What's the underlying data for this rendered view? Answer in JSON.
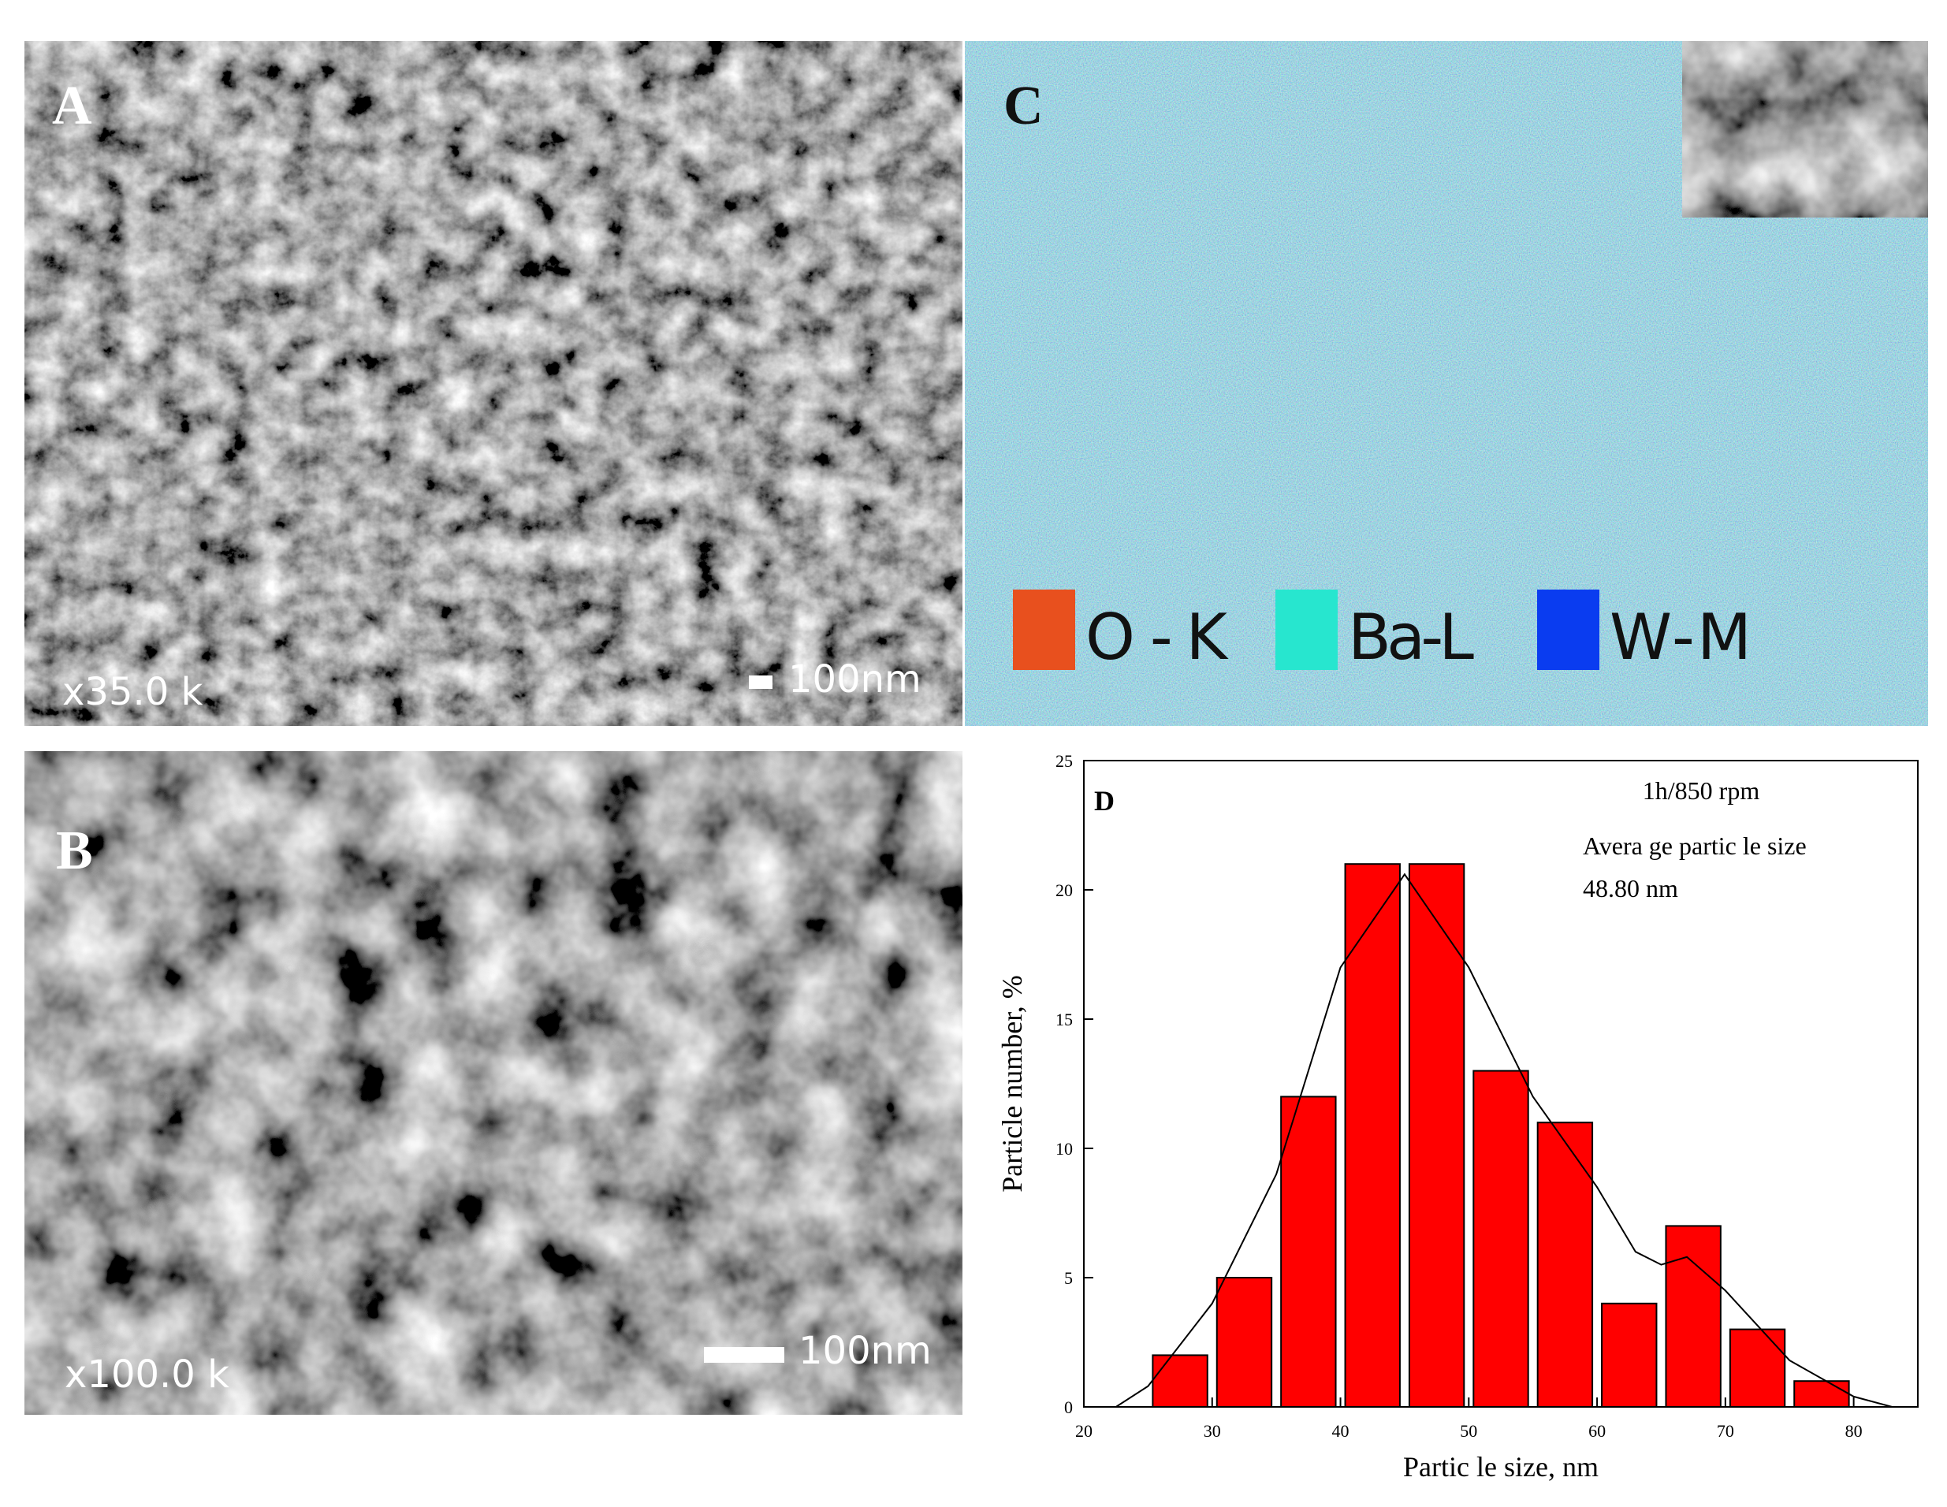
{
  "panels": {
    "a": {
      "label": "A",
      "magnification": "x35.0 k",
      "scale": "100nm"
    },
    "b": {
      "label": "B",
      "magnification": "x100.0 k",
      "scale": "100nm"
    },
    "c": {
      "label": "C",
      "legend": [
        {
          "name": "O-K",
          "color": "#e8501e"
        },
        {
          "name": "Ba-L",
          "color": "#27e6cf"
        },
        {
          "name": "W-M",
          "color": "#0a3cf0"
        }
      ]
    }
  },
  "chart_data": {
    "type": "histogram",
    "panel_label": "D",
    "xlabel": "Partic le size, nm",
    "ylabel": "Particle number, %",
    "annotations": [
      "1h/850 rpm",
      "Avera ge partic le size",
      "48.80 nm"
    ],
    "bins": [
      25,
      30,
      35,
      40,
      45,
      50,
      55,
      60,
      65,
      70,
      75,
      80
    ],
    "values": [
      2,
      5,
      12,
      21,
      21,
      13,
      11,
      4,
      7,
      3,
      1
    ],
    "color": "#ff0000",
    "fit_curve": {
      "color": "#000000",
      "x": [
        22.5,
        25,
        30,
        35,
        40,
        45,
        50,
        55,
        60,
        63,
        65,
        67,
        70,
        75,
        80,
        83
      ],
      "y": [
        0,
        0.8,
        4,
        9,
        17,
        20.6,
        17,
        12,
        8.5,
        6,
        5.5,
        5.8,
        4.5,
        1.8,
        0.4,
        0
      ]
    },
    "xlim": [
      20,
      85
    ],
    "xticks": [
      20,
      30,
      40,
      50,
      60,
      70,
      80
    ],
    "ylim": [
      0,
      25
    ],
    "yticks": [
      0,
      5,
      10,
      15,
      20,
      25
    ]
  }
}
